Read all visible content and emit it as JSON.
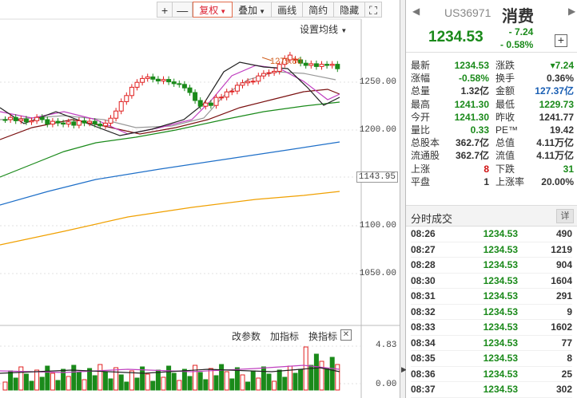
{
  "toolbar": {
    "plus": "+",
    "minus": "—",
    "adjust": "复权",
    "overlay": "叠加",
    "draw": "画线",
    "simple": "简约",
    "hide": "隐藏",
    "expand": "⛶"
  },
  "chart": {
    "ma_settings": "设置均线",
    "peak_annotation": "1279.80",
    "price_labels": [
      "1250.00",
      "1200.00",
      "1143.95",
      "1100.00",
      "1050.00"
    ],
    "volume_tools": {
      "edit_params": "改参数",
      "add_indicator": "加指标",
      "switch_indicator": "换指标"
    },
    "volume_close": "✕",
    "volume_high": "4.83",
    "volume_low": "0.00",
    "colors": {
      "up": "#e02020",
      "down": "#1a8a1a",
      "ma5": "#222222",
      "ma10": "#c040c0",
      "ma20": "#999999",
      "ma30": "#7a1010",
      "ma60": "#1a8a1a",
      "ma120": "#1e6fc8",
      "ma250": "#f0a000"
    }
  },
  "header": {
    "code": "US36971",
    "name": "消费",
    "price": "1234.53",
    "change": "- 7.24",
    "change_pct": "- 0.58%",
    "add": "+"
  },
  "quote": {
    "rows": [
      {
        "k1": "最新",
        "v1": "1234.53",
        "c1": "green",
        "k2": "涨跌",
        "v2": "▾7.24",
        "c2": "green"
      },
      {
        "k1": "涨幅",
        "v1": "-0.58%",
        "c1": "green",
        "k2": "换手",
        "v2": "0.36%",
        "c2": "dark"
      },
      {
        "k1": "总量",
        "v1": "1.32亿",
        "c1": "dark",
        "k2": "金额",
        "v2": "127.37亿",
        "c2": "blue"
      },
      {
        "k1": "最高",
        "v1": "1241.30",
        "c1": "green",
        "k2": "最低",
        "v2": "1229.73",
        "c2": "green"
      },
      {
        "k1": "今开",
        "v1": "1241.30",
        "c1": "green",
        "k2": "昨收",
        "v2": "1241.77",
        "c2": "dark"
      },
      {
        "k1": "量比",
        "v1": "0.33",
        "c1": "green",
        "k2": "PE™",
        "v2": "19.42",
        "c2": "dark"
      },
      {
        "k1": "总股本",
        "v1": "362.7亿",
        "c1": "dark",
        "k2": "总值",
        "v2": "4.11万亿",
        "c2": "dark"
      },
      {
        "k1": "流通股",
        "v1": "362.7亿",
        "c1": "dark",
        "k2": "流值",
        "v2": "4.11万亿",
        "c2": "dark"
      },
      {
        "k1": "上涨",
        "v1": "8",
        "c1": "red",
        "k2": "下跌",
        "v2": "31",
        "c2": "green"
      },
      {
        "k1": "平盘",
        "v1": "1",
        "c1": "dark",
        "k2": "上涨率",
        "v2": "20.00%",
        "c2": "dark"
      }
    ]
  },
  "trades": {
    "title": "分时成交",
    "detail": "详",
    "rows": [
      {
        "time": "08:26",
        "price": "1234.53",
        "vol": "490"
      },
      {
        "time": "08:27",
        "price": "1234.53",
        "vol": "1219"
      },
      {
        "time": "08:28",
        "price": "1234.53",
        "vol": "904"
      },
      {
        "time": "08:30",
        "price": "1234.53",
        "vol": "1604"
      },
      {
        "time": "08:31",
        "price": "1234.53",
        "vol": "291"
      },
      {
        "time": "08:32",
        "price": "1234.53",
        "vol": "9"
      },
      {
        "time": "08:33",
        "price": "1234.53",
        "vol": "1602"
      },
      {
        "time": "08:34",
        "price": "1234.53",
        "vol": "77"
      },
      {
        "time": "08:35",
        "price": "1234.53",
        "vol": "8"
      },
      {
        "time": "08:36",
        "price": "1234.53",
        "vol": "25"
      },
      {
        "time": "08:37",
        "price": "1234.53",
        "vol": "302"
      }
    ]
  },
  "splitter_arrow": "▶"
}
